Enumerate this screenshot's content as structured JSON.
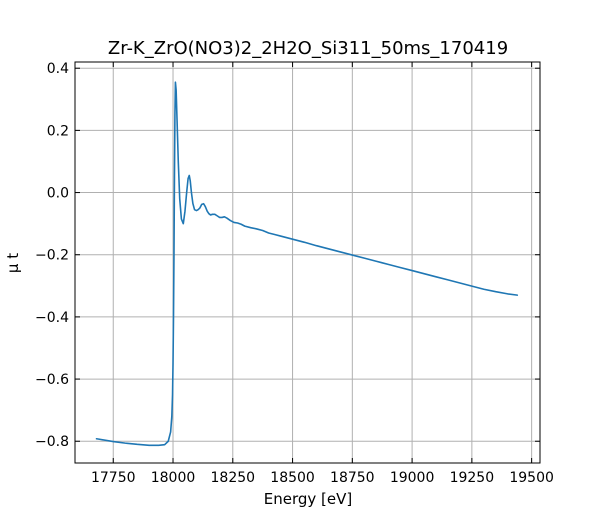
{
  "chart_data": {
    "type": "line",
    "title": "Zr-K_ZrO(NO3)2_2H2O_Si311_50ms_170419",
    "xlabel": "Energy [eV]",
    "ylabel": "μ t",
    "xlim": [
      17590,
      19535
    ],
    "ylim": [
      -0.87,
      0.42
    ],
    "xticks": [
      17750,
      18000,
      18250,
      18500,
      18750,
      19000,
      19250,
      19500
    ],
    "yticks": [
      -0.8,
      -0.6,
      -0.4,
      -0.2,
      0.0,
      0.2,
      0.4
    ],
    "xtick_labels": [
      "17750",
      "18000",
      "18250",
      "18500",
      "18750",
      "19000",
      "19250",
      "19500"
    ],
    "ytick_labels": [
      "−0.8",
      "−0.6",
      "−0.4",
      "−0.2",
      "0.0",
      "0.2",
      "0.4"
    ],
    "grid": true,
    "color": "#1f77b4",
    "series": [
      {
        "x": [
          17680,
          17750,
          17800,
          17850,
          17900,
          17940,
          17965,
          17980,
          17990,
          17995,
          17998,
          18000,
          18002,
          18004,
          18006,
          18008,
          18010,
          18013,
          18017,
          18022,
          18028,
          18035,
          18043,
          18050,
          18057,
          18063,
          18068,
          18072,
          18077,
          18083,
          18090,
          18098,
          18105,
          18112,
          18120,
          18128,
          18135,
          18143,
          18150,
          18157,
          18165,
          18175,
          18185,
          18195,
          18205,
          18215,
          18225,
          18240,
          18255,
          18270,
          18285,
          18300,
          18325,
          18350,
          18375,
          18400,
          18425,
          18450,
          18500,
          18550,
          18600,
          18650,
          18700,
          18750,
          18800,
          18850,
          18900,
          18950,
          19000,
          19050,
          19100,
          19150,
          19200,
          19250,
          19300,
          19350,
          19400,
          19440
        ],
        "y": [
          -0.792,
          -0.801,
          -0.806,
          -0.81,
          -0.813,
          -0.813,
          -0.811,
          -0.8,
          -0.77,
          -0.72,
          -0.65,
          -0.55,
          -0.4,
          -0.2,
          0.05,
          0.25,
          0.355,
          0.33,
          0.23,
          0.1,
          -0.02,
          -0.085,
          -0.1,
          -0.06,
          0.0,
          0.045,
          0.055,
          0.038,
          0.0,
          -0.035,
          -0.055,
          -0.058,
          -0.055,
          -0.05,
          -0.038,
          -0.036,
          -0.045,
          -0.06,
          -0.068,
          -0.072,
          -0.07,
          -0.07,
          -0.075,
          -0.08,
          -0.08,
          -0.078,
          -0.082,
          -0.09,
          -0.096,
          -0.098,
          -0.102,
          -0.108,
          -0.113,
          -0.117,
          -0.122,
          -0.13,
          -0.135,
          -0.14,
          -0.15,
          -0.16,
          -0.171,
          -0.181,
          -0.191,
          -0.201,
          -0.211,
          -0.221,
          -0.231,
          -0.241,
          -0.251,
          -0.261,
          -0.271,
          -0.281,
          -0.291,
          -0.301,
          -0.311,
          -0.319,
          -0.326,
          -0.33
        ]
      }
    ]
  }
}
